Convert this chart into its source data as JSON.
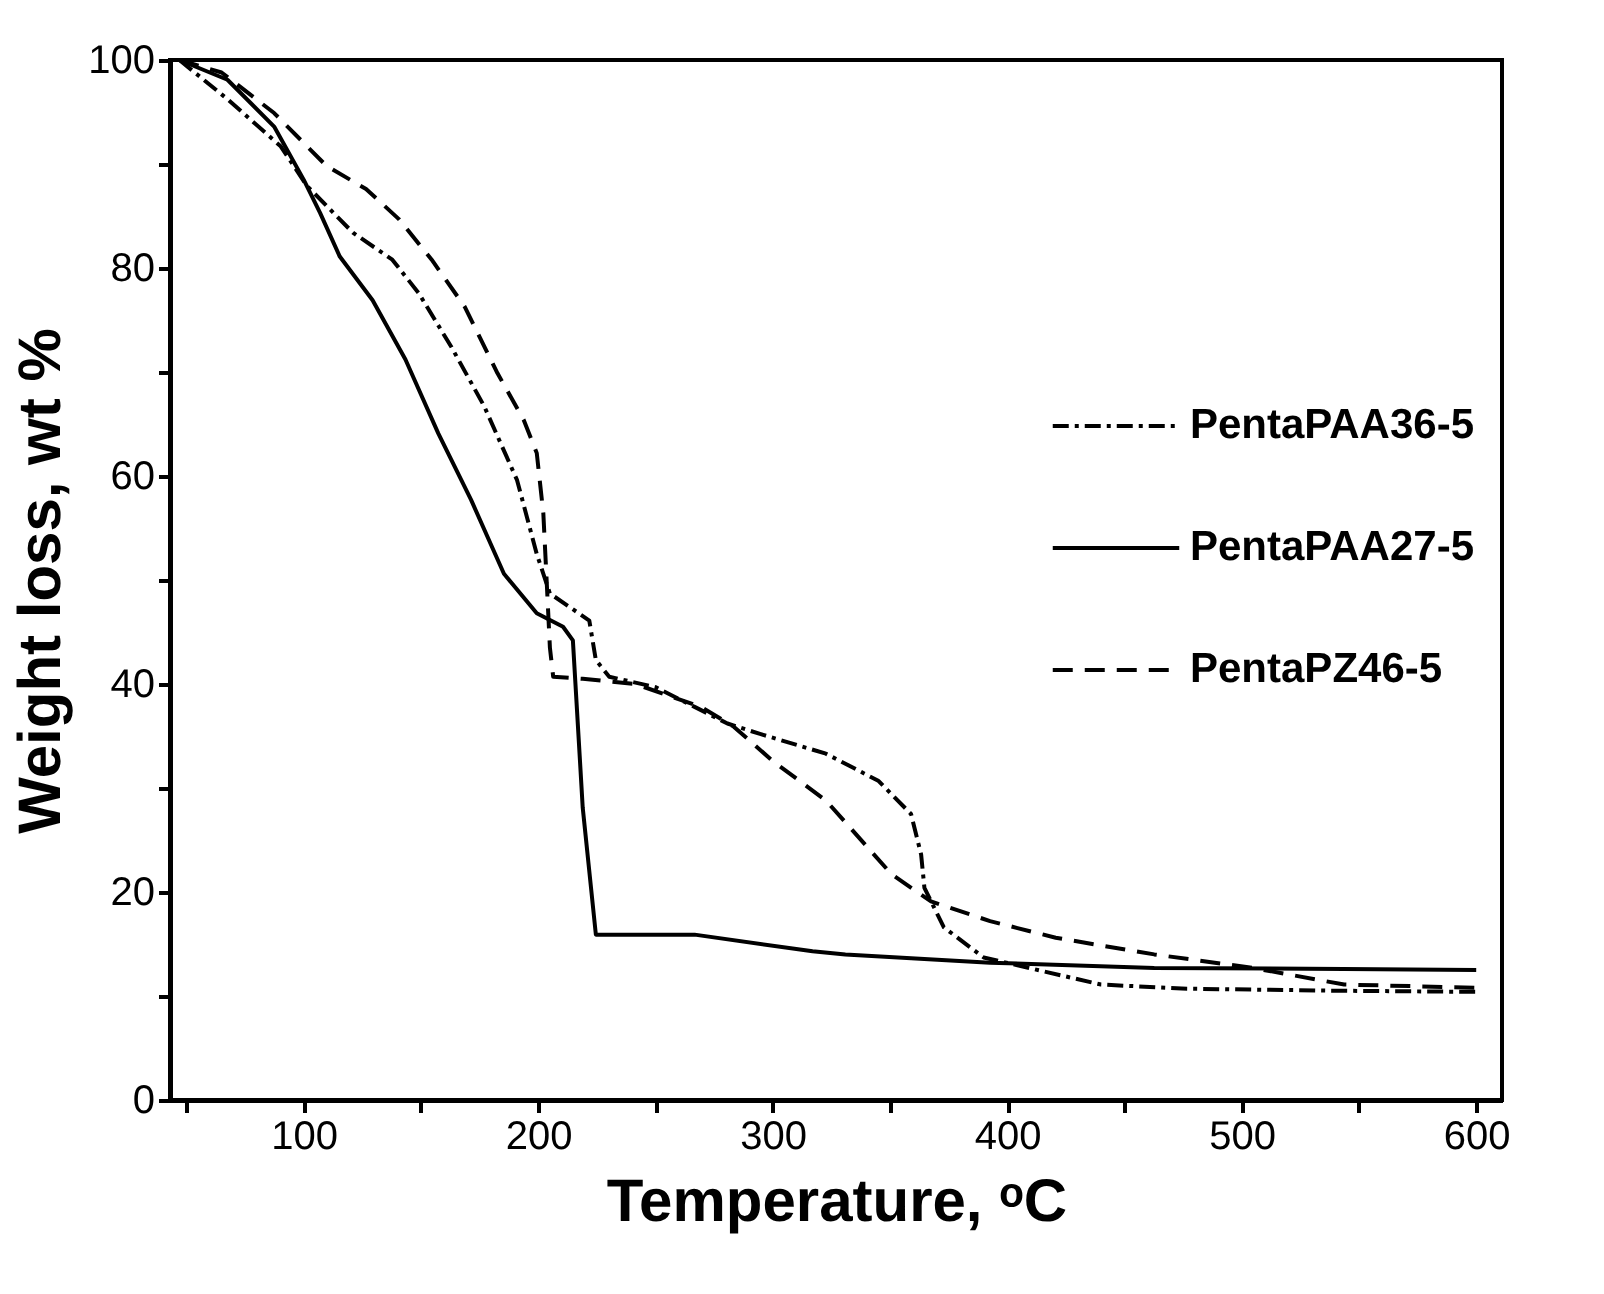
{
  "chart_data": {
    "type": "line",
    "xlabel": "Temperature, ᵒC",
    "ylabel": "Weight loss, wt %",
    "xlim": [
      43,
      611
    ],
    "ylim": [
      0,
      100
    ],
    "xticks": [
      {
        "value": 50,
        "label": null
      },
      100,
      {
        "value": 150,
        "label": null
      },
      200,
      {
        "value": 250,
        "label": null
      },
      300,
      {
        "value": 350,
        "label": null
      },
      400,
      {
        "value": 450,
        "label": null
      },
      500,
      {
        "value": 550,
        "label": null
      },
      600
    ],
    "yticks": [
      0,
      {
        "value": 10,
        "label": null
      },
      20,
      {
        "value": 30,
        "label": null
      },
      40,
      {
        "value": 50,
        "label": null
      },
      60,
      {
        "value": 70,
        "label": null
      },
      80,
      {
        "value": 90,
        "label": null
      },
      100
    ],
    "grid": false,
    "legend": "right",
    "marker": "none",
    "series": [
      {
        "name": "PentaPAA36-5",
        "color": "#000000",
        "line_style": "dashdot",
        "x": [
          47,
          67.7,
          90.2,
          101.4,
          121,
          137.8,
          149,
          163,
          177,
          191,
          199.4,
          205,
          221.8,
          224.6,
          230.3,
          250,
          266.7,
          280.7,
          294.6,
          322.7,
          345,
          359,
          363.3,
          364.7,
          373,
          390,
          415,
          440,
          476.7,
          543.7,
          600
        ],
        "values": [
          100,
          96.2,
          91.7,
          87.9,
          83.4,
          80.8,
          77.6,
          72.4,
          66.7,
          59.6,
          52.5,
          48.7,
          46.1,
          42.3,
          40.7,
          39.7,
          37.8,
          36.2,
          35.2,
          33.3,
          30.7,
          27.5,
          23.6,
          20.4,
          16.6,
          13.7,
          12.4,
          11.1,
          10.7,
          10.5,
          10.4
        ]
      },
      {
        "name": "PentaPAA27-5",
        "color": "#000000",
        "line_style": "solid",
        "x": [
          47,
          67.5,
          87.4,
          100,
          107,
          115.4,
          129.4,
          143.4,
          157.4,
          171.4,
          185.4,
          199.4,
          210.6,
          214.8,
          219,
          224.6,
          249.8,
          266.7,
          317,
          331,
          392.7,
          462.7,
          543.7,
          600
        ],
        "values": [
          100,
          98.1,
          93.6,
          88.5,
          85.3,
          81.1,
          76.9,
          71.2,
          64.1,
          57.7,
          50.6,
          46.8,
          45.5,
          44.2,
          28.1,
          15.9,
          15.9,
          15.9,
          14.3,
          14.0,
          13.2,
          12.7,
          12.6,
          12.5
        ]
      },
      {
        "name": "PentaPZ46-5",
        "color": "#000000",
        "line_style": "dashed",
        "x": [
          47,
          65,
          87.4,
          109.8,
          126.6,
          140.6,
          154.6,
          168.6,
          182.6,
          193.8,
          199.4,
          202.2,
          203.6,
          205,
          206.4,
          219,
          241.4,
          269.4,
          283.4,
          300,
          322.7,
          350.7,
          367.5,
          392.7,
          420.7,
          462.7,
          504.7,
          543.7,
          600
        ],
        "values": [
          100,
          98.8,
          94.9,
          89.8,
          87.6,
          84.7,
          80.8,
          76.3,
          69.9,
          65.4,
          62.2,
          56.4,
          50.0,
          43.5,
          40.7,
          40.5,
          40.0,
          37.8,
          35.9,
          32.6,
          28.8,
          21.7,
          19.1,
          17.2,
          15.6,
          14.0,
          12.7,
          11.1,
          10.8
        ]
      }
    ]
  }
}
